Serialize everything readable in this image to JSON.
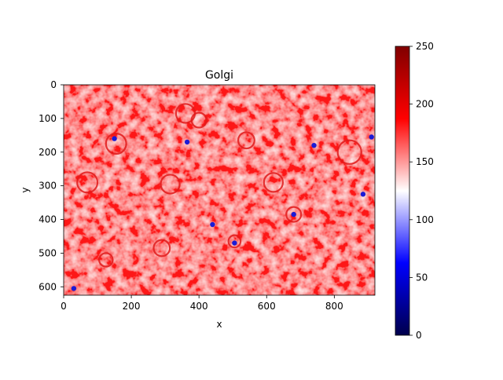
{
  "chart_data": {
    "type": "heatmap",
    "title": "Golgi",
    "xlabel": "x",
    "ylabel": "y",
    "xlim": [
      0,
      920
    ],
    "ylim": [
      625,
      0
    ],
    "x_ticks": [
      0,
      200,
      400,
      600,
      800
    ],
    "y_ticks": [
      0,
      100,
      200,
      300,
      400,
      500,
      600
    ],
    "colorbar": {
      "colormap": "seismic",
      "range": [
        0,
        250
      ],
      "ticks": [
        0,
        50,
        100,
        150,
        200,
        250
      ]
    },
    "description_values": {
      "background_level": 165,
      "low_spots_level": 60,
      "high_rims_level": 225
    },
    "blobs": [
      {
        "x": 360,
        "y": 85,
        "r": 28
      },
      {
        "x": 400,
        "y": 105,
        "r": 22
      },
      {
        "x": 155,
        "y": 175,
        "r": 30
      },
      {
        "x": 315,
        "y": 295,
        "r": 28
      },
      {
        "x": 620,
        "y": 290,
        "r": 28
      },
      {
        "x": 680,
        "y": 385,
        "r": 22
      },
      {
        "x": 290,
        "y": 485,
        "r": 24
      },
      {
        "x": 125,
        "y": 520,
        "r": 20
      },
      {
        "x": 505,
        "y": 465,
        "r": 18
      },
      {
        "x": 845,
        "y": 200,
        "r": 35
      },
      {
        "x": 540,
        "y": 165,
        "r": 24
      },
      {
        "x": 70,
        "y": 290,
        "r": 30
      }
    ],
    "dark_spots": [
      {
        "x": 680,
        "y": 385
      },
      {
        "x": 505,
        "y": 470
      },
      {
        "x": 365,
        "y": 170
      },
      {
        "x": 150,
        "y": 160
      },
      {
        "x": 30,
        "y": 605
      },
      {
        "x": 910,
        "y": 155
      },
      {
        "x": 885,
        "y": 325
      },
      {
        "x": 740,
        "y": 180
      },
      {
        "x": 440,
        "y": 415
      }
    ]
  }
}
